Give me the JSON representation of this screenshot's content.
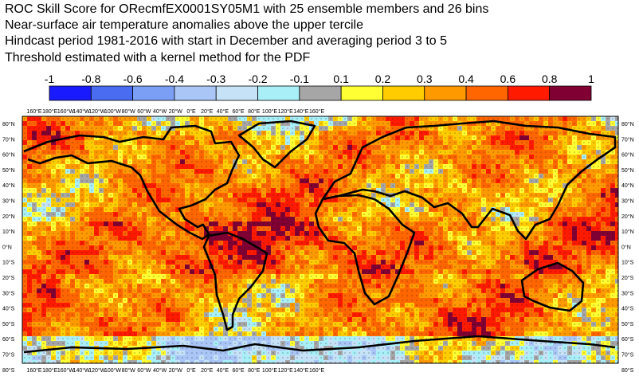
{
  "titles": [
    "ROC Skill Score for ORecmfEX0001SY05M1 with 25 ensemble members and 26 bins",
    "Near-surface air temperature anomalies above the upper tercile",
    "Hindcast period 1981-2016 with start in December and averaging period  3 to  5",
    "Threshold estimated with a kernel method for the PDF"
  ],
  "colorbar": {
    "labels": [
      "-1",
      "-0.8",
      "-0.6",
      "-0.4",
      "-0.3",
      "-0.2",
      "-0.1",
      "0.1",
      "0.2",
      "0.3",
      "0.4",
      "0.6",
      "0.8",
      "1"
    ],
    "colors": [
      "#1a1aff",
      "#4a6cf0",
      "#7a9ff5",
      "#a9c6f7",
      "#c5e2f7",
      "#a8eff8",
      "#a6a6a6",
      "#ffff33",
      "#ffcc00",
      "#ff9900",
      "#ff6600",
      "#ff1a00",
      "#800033"
    ]
  },
  "axes": {
    "lon_labels": [
      "160°E",
      "180°E",
      "160°W",
      "140°W",
      "120°W",
      "100°W",
      "80°W",
      "60°W",
      "40°W",
      "20°W",
      "0°E",
      "20°E",
      "40°E",
      "60°E",
      "80°E",
      "100°E",
      "120°E",
      "140°E",
      "160°E"
    ],
    "lat_labels": [
      "80°N",
      "70°N",
      "60°N",
      "50°N",
      "40°N",
      "30°N",
      "20°N",
      "10°N",
      "0°N",
      "10°S",
      "20°S",
      "30°S",
      "40°S",
      "50°S",
      "60°S",
      "70°S",
      "80°S"
    ]
  }
}
